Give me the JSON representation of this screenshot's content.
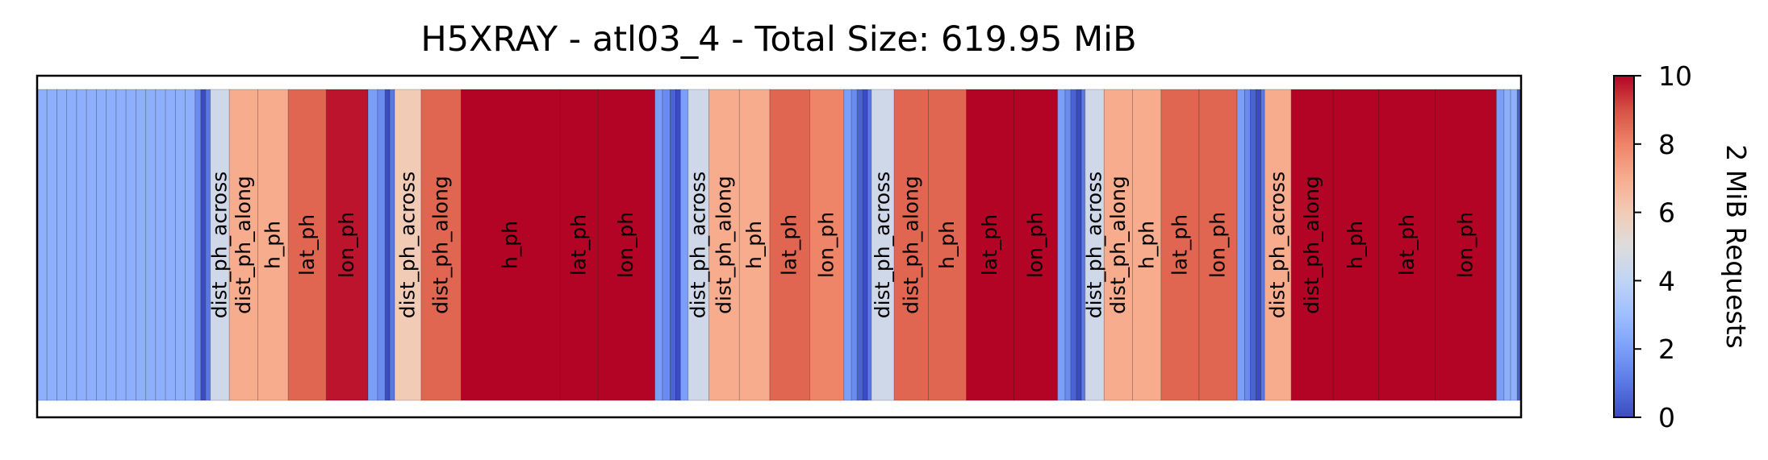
{
  "chart_data": {
    "type": "heatmap",
    "title": "H5XRAY - atl03_4 - Total Size: 619.95 MiB",
    "xlabel": "",
    "ylabel": "",
    "colorbar": {
      "label": "2 MiB Requests",
      "range": [
        0,
        10
      ],
      "ticks": [
        "0",
        "2",
        "4",
        "6",
        "8",
        "10"
      ],
      "colormap": "coolwarm"
    },
    "cells": [
      {
        "label": "",
        "w": 0.52,
        "v": 2.5
      },
      {
        "label": "",
        "w": 0.52,
        "v": 2.5
      },
      {
        "label": "",
        "w": 0.52,
        "v": 2.5
      },
      {
        "label": "",
        "w": 0.52,
        "v": 2.5
      },
      {
        "label": "",
        "w": 0.52,
        "v": 2.5
      },
      {
        "label": "",
        "w": 0.52,
        "v": 2.5
      },
      {
        "label": "",
        "w": 0.52,
        "v": 2.5
      },
      {
        "label": "",
        "w": 0.52,
        "v": 2.5
      },
      {
        "label": "",
        "w": 0.52,
        "v": 2.5
      },
      {
        "label": "",
        "w": 0.52,
        "v": 2.5
      },
      {
        "label": "",
        "w": 0.52,
        "v": 2.5
      },
      {
        "label": "",
        "w": 0.52,
        "v": 2.5
      },
      {
        "label": "",
        "w": 0.52,
        "v": 2.5
      },
      {
        "label": "",
        "w": 0.52,
        "v": 2.5
      },
      {
        "label": "",
        "w": 0.52,
        "v": 2.5
      },
      {
        "label": "",
        "w": 0.52,
        "v": 2.5
      },
      {
        "label": "",
        "w": 0.3,
        "v": 1.5
      },
      {
        "label": "",
        "w": 0.25,
        "v": 0.0
      },
      {
        "label": "",
        "w": 0.25,
        "v": 1.0
      },
      {
        "label": "dist_ph_across",
        "w": 1.0,
        "v": 4.5
      },
      {
        "label": "dist_ph_along",
        "w": 1.5,
        "v": 7.0
      },
      {
        "label": "h_ph",
        "w": 1.6,
        "v": 7.0
      },
      {
        "label": "lat_ph",
        "w": 2.0,
        "v": 8.6
      },
      {
        "label": "lon_ph",
        "w": 2.2,
        "v": 9.8
      },
      {
        "label": "",
        "w": 0.5,
        "v": 2.0
      },
      {
        "label": "",
        "w": 0.4,
        "v": 1.5
      },
      {
        "label": "",
        "w": 0.25,
        "v": 0.0
      },
      {
        "label": "",
        "w": 0.25,
        "v": 1.0
      },
      {
        "label": "dist_ph_across",
        "w": 1.4,
        "v": 6.0
      },
      {
        "label": "dist_ph_along",
        "w": 2.1,
        "v": 8.6
      },
      {
        "label": "h_ph",
        "w": 5.2,
        "v": 10.0
      },
      {
        "label": "lat_ph",
        "w": 2.0,
        "v": 10.0
      },
      {
        "label": "lon_ph",
        "w": 3.0,
        "v": 10.0
      },
      {
        "label": "",
        "w": 0.4,
        "v": 2.0
      },
      {
        "label": "",
        "w": 0.4,
        "v": 1.5
      },
      {
        "label": "",
        "w": 0.3,
        "v": 0.5
      },
      {
        "label": "",
        "w": 0.25,
        "v": 0.0
      },
      {
        "label": "",
        "w": 0.4,
        "v": 2.0
      },
      {
        "label": "dist_ph_across",
        "w": 1.1,
        "v": 4.5
      },
      {
        "label": "dist_ph_along",
        "w": 1.6,
        "v": 7.0
      },
      {
        "label": "h_ph",
        "w": 1.6,
        "v": 7.0
      },
      {
        "label": "lat_ph",
        "w": 2.1,
        "v": 8.6
      },
      {
        "label": "lon_ph",
        "w": 1.8,
        "v": 8.0
      },
      {
        "label": "",
        "w": 0.4,
        "v": 2.0
      },
      {
        "label": "",
        "w": 0.3,
        "v": 1.5
      },
      {
        "label": "",
        "w": 0.3,
        "v": 0.5
      },
      {
        "label": "",
        "w": 0.25,
        "v": 0.0
      },
      {
        "label": "",
        "w": 0.2,
        "v": 1.0
      },
      {
        "label": "dist_ph_across",
        "w": 1.2,
        "v": 4.5
      },
      {
        "label": "dist_ph_along",
        "w": 1.8,
        "v": 8.6
      },
      {
        "label": "h_ph",
        "w": 2.0,
        "v": 8.6
      },
      {
        "label": "lat_ph",
        "w": 2.5,
        "v": 10.0
      },
      {
        "label": "lon_ph",
        "w": 2.3,
        "v": 10.0
      },
      {
        "label": "",
        "w": 0.4,
        "v": 2.0
      },
      {
        "label": "",
        "w": 0.3,
        "v": 1.5
      },
      {
        "label": "",
        "w": 0.3,
        "v": 0.5
      },
      {
        "label": "",
        "w": 0.25,
        "v": 0.0
      },
      {
        "label": "",
        "w": 0.2,
        "v": 1.0
      },
      {
        "label": "dist_ph_across",
        "w": 1.0,
        "v": 4.5
      },
      {
        "label": "dist_ph_along",
        "w": 1.5,
        "v": 7.0
      },
      {
        "label": "h_ph",
        "w": 1.5,
        "v": 7.0
      },
      {
        "label": "lat_ph",
        "w": 2.0,
        "v": 8.6
      },
      {
        "label": "lon_ph",
        "w": 2.0,
        "v": 8.6
      },
      {
        "label": "",
        "w": 0.4,
        "v": 2.0
      },
      {
        "label": "",
        "w": 0.3,
        "v": 1.5
      },
      {
        "label": "",
        "w": 0.3,
        "v": 0.5
      },
      {
        "label": "",
        "w": 0.25,
        "v": 0.0
      },
      {
        "label": "",
        "w": 0.2,
        "v": 1.0
      },
      {
        "label": "dist_ph_across",
        "w": 1.4,
        "v": 7.0
      },
      {
        "label": "dist_ph_along",
        "w": 2.2,
        "v": 10.0
      },
      {
        "label": "h_ph",
        "w": 2.4,
        "v": 10.0
      },
      {
        "label": "lat_ph",
        "w": 3.0,
        "v": 10.0
      },
      {
        "label": "lon_ph",
        "w": 3.2,
        "v": 10.0
      },
      {
        "label": "",
        "w": 0.4,
        "v": 2.0
      },
      {
        "label": "",
        "w": 0.35,
        "v": 2.5
      },
      {
        "label": "",
        "w": 0.35,
        "v": 2.5
      },
      {
        "label": "",
        "w": 0.2,
        "v": 0.5
      }
    ]
  }
}
